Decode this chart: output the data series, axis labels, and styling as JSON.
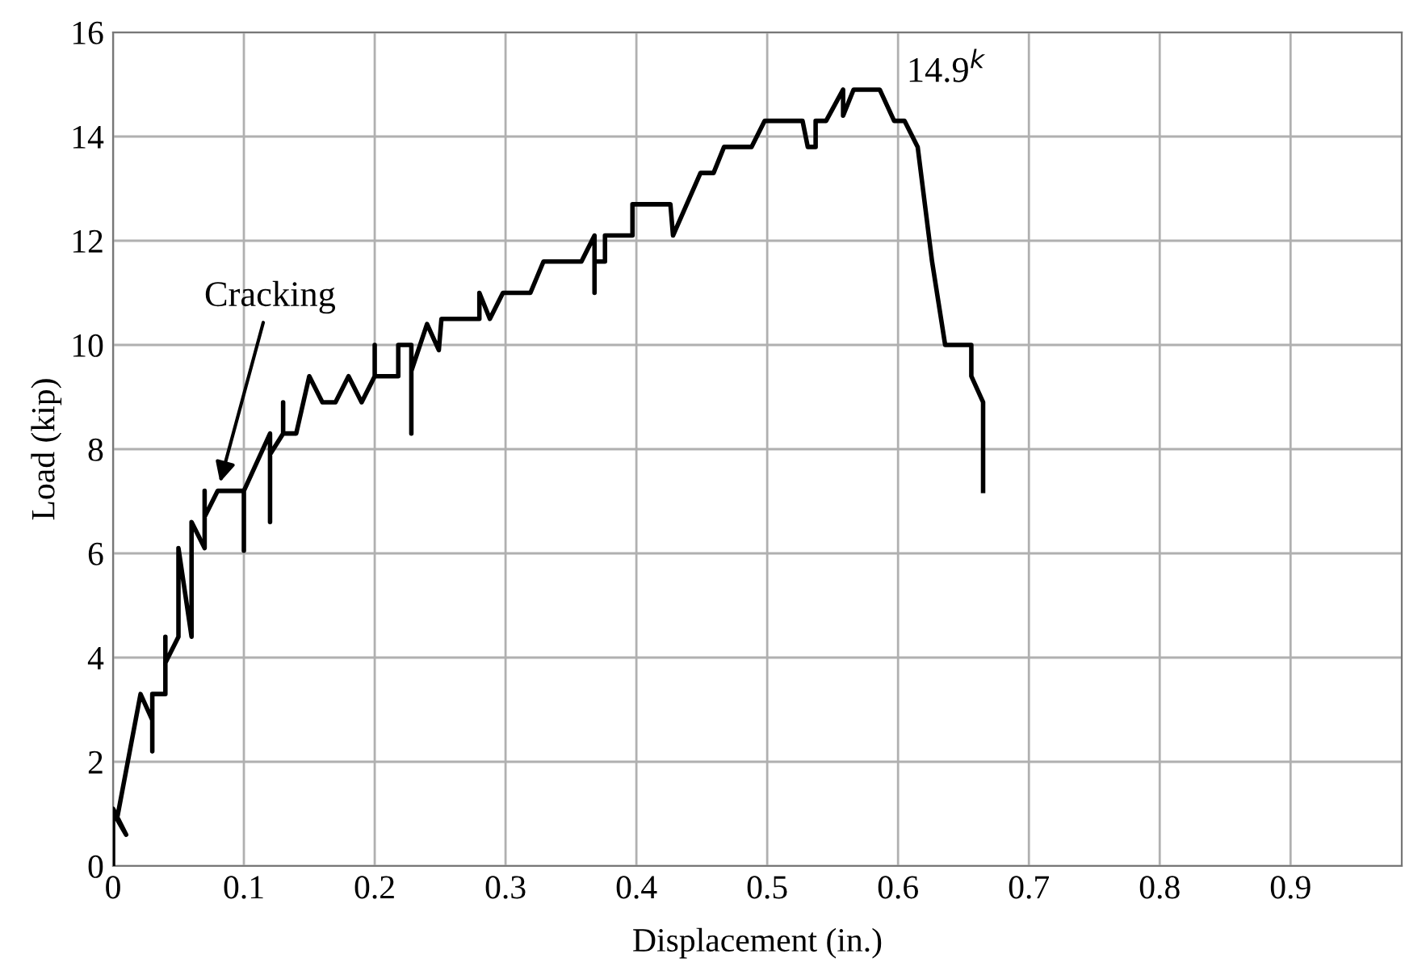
{
  "chart_data": {
    "type": "line",
    "xlabel": "Displacement (in.)",
    "ylabel": "Load (kip)",
    "xlim": [
      0,
      0.985
    ],
    "ylim": [
      0,
      16
    ],
    "xticks": [
      0,
      0.1,
      0.2,
      0.3,
      0.4,
      0.5,
      0.6,
      0.7,
      0.8,
      0.9
    ],
    "yticks": [
      0,
      2,
      4,
      6,
      8,
      10,
      12,
      14,
      16
    ],
    "grid": true,
    "marker": "none",
    "line_style": "solid",
    "annotations": [
      {
        "text": "Cracking",
        "x": 0.08,
        "y": 7.2
      },
      {
        "text": "14.9$^{k}$",
        "x": 0.586,
        "y": 14.9
      }
    ],
    "series": [
      {
        "color": "#000000",
        "x": [
          0,
          0,
          0.01,
          0.003,
          0.021,
          0.03,
          0.03,
          0.03,
          0.04,
          0.04,
          0.04,
          0.05,
          0.05,
          0.06,
          0.06,
          0.07,
          0.07,
          0.07,
          0.08,
          0.1,
          0.1,
          0.1,
          0.12,
          0.12,
          0.12,
          0.13,
          0.13,
          0.13,
          0.14,
          0.15,
          0.16,
          0.17,
          0.18,
          0.19,
          0.2,
          0.2,
          0.2,
          0.218,
          0.218,
          0.228,
          0.228,
          0.228,
          0.24,
          0.249,
          0.251,
          0.28,
          0.28,
          0.288,
          0.298,
          0.319,
          0.329,
          0.358,
          0.368,
          0.368,
          0.368,
          0.376,
          0.376,
          0.397,
          0.397,
          0.426,
          0.428,
          0.449,
          0.459,
          0.467,
          0.488,
          0.498,
          0.527,
          0.531,
          0.537,
          0.537,
          0.545,
          0.558,
          0.558,
          0.566,
          0.586,
          0.597,
          0.605,
          0.615,
          0.626,
          0.636,
          0.656,
          0.656,
          0.665,
          0.665
        ],
        "values": [
          0,
          1.1,
          0.6,
          0.9,
          3.3,
          2.8,
          2.2,
          3.3,
          3.3,
          4.4,
          3.9,
          4.4,
          6.1,
          4.4,
          6.6,
          6.1,
          7.2,
          6.7,
          7.2,
          7.2,
          6.05,
          7.2,
          8.3,
          6.6,
          7.9,
          8.3,
          8.9,
          8.3,
          8.3,
          9.4,
          8.9,
          8.9,
          9.4,
          8.9,
          9.4,
          10.0,
          9.4,
          9.4,
          10.0,
          10.0,
          8.3,
          9.5,
          10.4,
          9.9,
          10.5,
          10.5,
          11.0,
          10.5,
          11.0,
          11.0,
          11.6,
          11.6,
          12.1,
          11.0,
          11.6,
          11.6,
          12.1,
          12.1,
          12.7,
          12.7,
          12.1,
          13.3,
          13.3,
          13.8,
          13.8,
          14.3,
          14.3,
          13.8,
          13.8,
          14.3,
          14.3,
          14.9,
          14.4,
          14.9,
          14.9,
          14.3,
          14.3,
          13.8,
          11.6,
          10.0,
          10.0,
          9.4,
          8.9,
          7.2
        ]
      }
    ]
  }
}
